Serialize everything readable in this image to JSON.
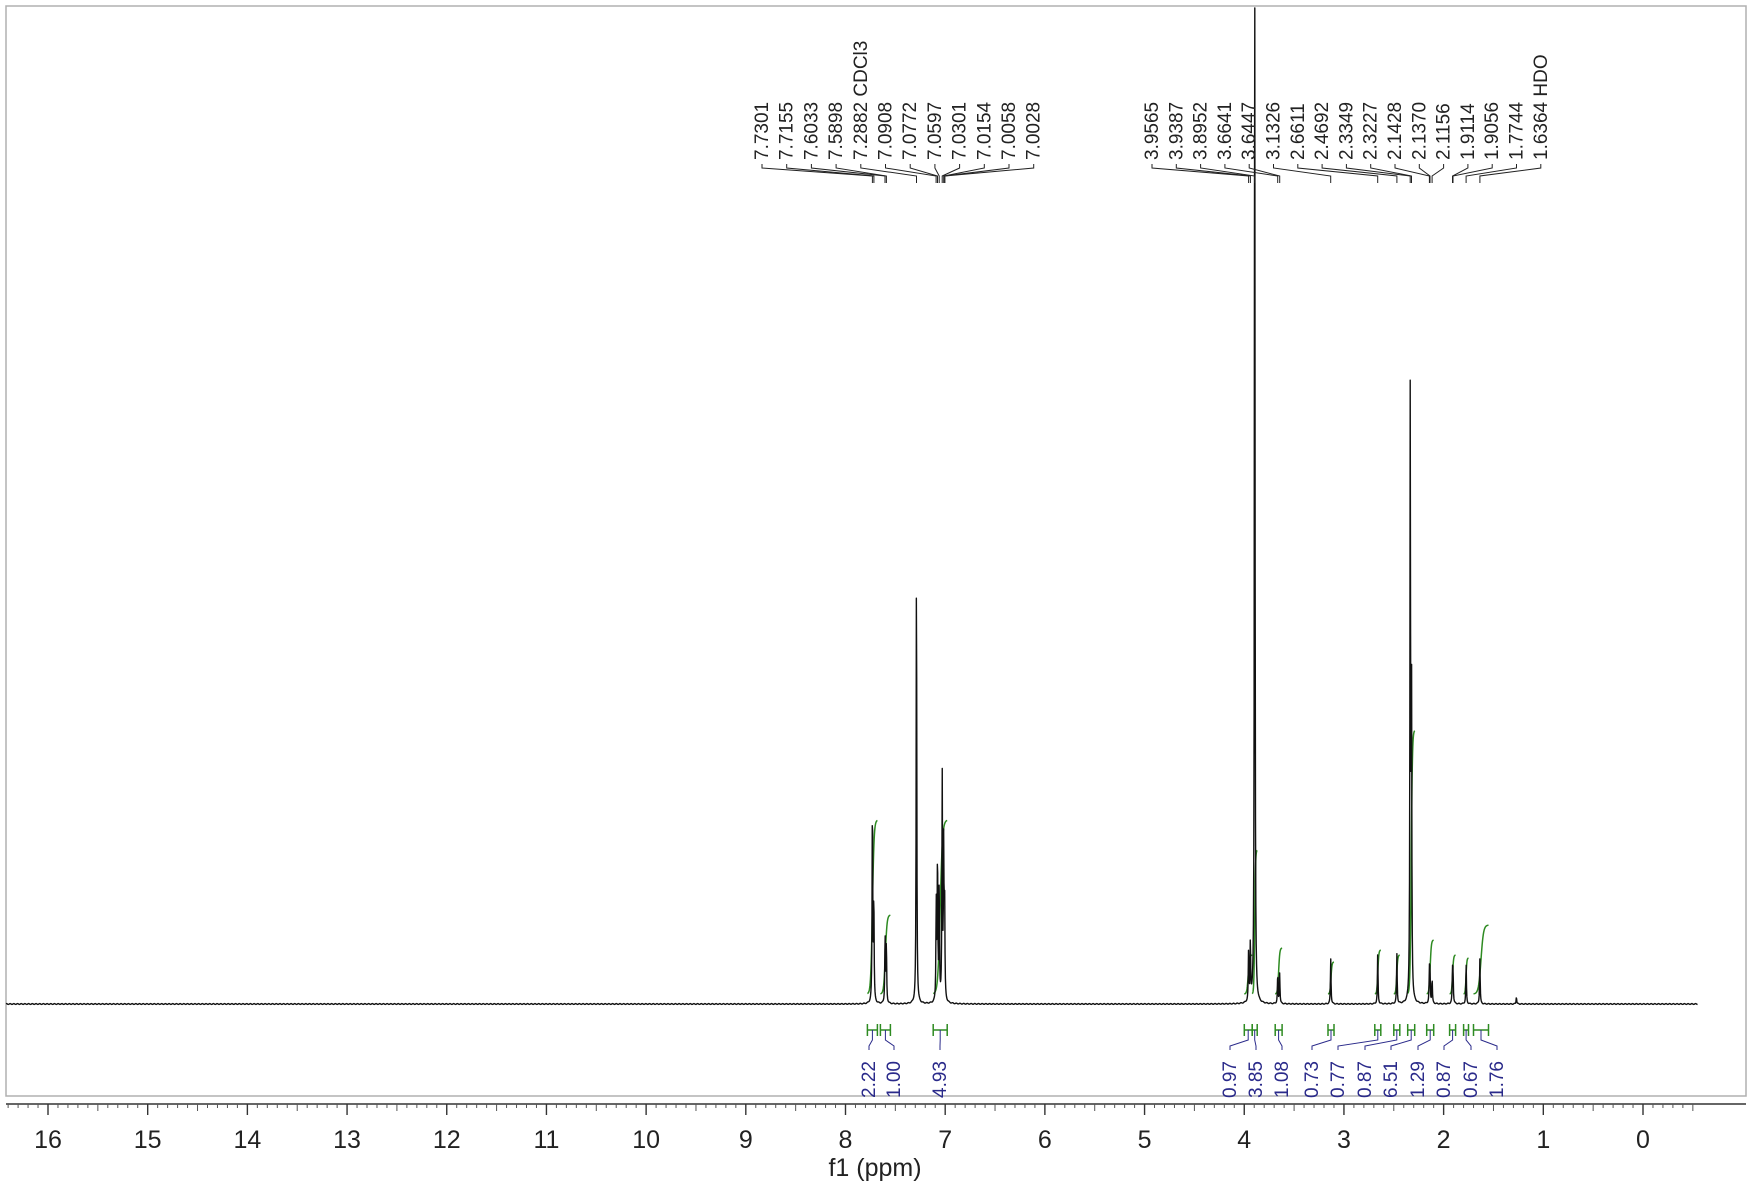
{
  "chart_data": {
    "type": "line",
    "xlabel": "f1 (ppm)",
    "ylabel": "",
    "xlim": [
      16.4,
      -0.5
    ],
    "x_reversed": true,
    "grid": false,
    "x_ticks": [
      16,
      15,
      14,
      13,
      12,
      11,
      10,
      9,
      8,
      7,
      6,
      5,
      4,
      3,
      2,
      1,
      0
    ],
    "tick_labels": [
      "16",
      "15",
      "14",
      "13",
      "12",
      "11",
      "10",
      "9",
      "8",
      "7",
      "6",
      "5",
      "4",
      "3",
      "2",
      "1",
      "0"
    ],
    "peak_groups": [
      {
        "labels": [
          "7.7301",
          "7.7155",
          "7.6033",
          "7.5898",
          "7.2882 CDCl3",
          "7.0908",
          "7.0772",
          "7.0597",
          "7.0301",
          "7.0154",
          "7.0058",
          "7.0028"
        ],
        "shifts": [
          7.7301,
          7.7155,
          7.6033,
          7.5898,
          7.2882,
          7.0908,
          7.0772,
          7.0597,
          7.0301,
          7.0154,
          7.0058,
          7.0028
        ]
      },
      {
        "labels": [
          "3.9565",
          "3.9387",
          "3.8952",
          "3.6641",
          "3.6447",
          "3.1326",
          "2.6611",
          "2.4692",
          "2.3349",
          "2.3227",
          "2.1428",
          "2.1370",
          "2.1156",
          "1.9114",
          "1.9056",
          "1.7744",
          "1.6364 HDO"
        ],
        "shifts": [
          3.9565,
          3.9387,
          3.8952,
          3.6641,
          3.6447,
          3.1326,
          2.6611,
          2.4692,
          2.3349,
          2.3227,
          2.1428,
          2.137,
          2.1156,
          1.9114,
          1.9056,
          1.7744,
          1.6364
        ]
      }
    ],
    "peaks": [
      {
        "x": 7.73,
        "h": 0.42
      },
      {
        "x": 7.716,
        "h": 0.21
      },
      {
        "x": 7.603,
        "h": 0.14
      },
      {
        "x": 7.59,
        "h": 0.12
      },
      {
        "x": 7.288,
        "h": 0.91
      },
      {
        "x": 7.09,
        "h": 0.2
      },
      {
        "x": 7.077,
        "h": 0.3
      },
      {
        "x": 7.06,
        "h": 0.23
      },
      {
        "x": 7.03,
        "h": 0.45
      },
      {
        "x": 7.015,
        "h": 0.3
      },
      {
        "x": 7.006,
        "h": 0.2
      },
      {
        "x": 3.9565,
        "h": 0.1
      },
      {
        "x": 3.9387,
        "h": 0.12
      },
      {
        "x": 3.8952,
        "h": 2.3
      },
      {
        "x": 3.6641,
        "h": 0.06
      },
      {
        "x": 3.6447,
        "h": 0.06
      },
      {
        "x": 3.1326,
        "h": 0.09
      },
      {
        "x": 2.6611,
        "h": 0.1
      },
      {
        "x": 2.4692,
        "h": 0.1
      },
      {
        "x": 2.3349,
        "h": 1.2
      },
      {
        "x": 2.3227,
        "h": 0.7
      },
      {
        "x": 2.1428,
        "h": 0.06
      },
      {
        "x": 2.137,
        "h": 0.06
      },
      {
        "x": 2.1156,
        "h": 0.05
      },
      {
        "x": 1.9114,
        "h": 0.06
      },
      {
        "x": 1.9056,
        "h": 0.06
      },
      {
        "x": 1.7744,
        "h": 0.08
      },
      {
        "x": 1.6364,
        "h": 0.09
      },
      {
        "x": 1.27,
        "h": 0.015
      }
    ],
    "integrals": [
      {
        "from": 7.78,
        "to": 7.68,
        "value": "2.22"
      },
      {
        "from": 7.65,
        "to": 7.55,
        "value": "1.00"
      },
      {
        "from": 7.12,
        "to": 6.98,
        "value": "4.93"
      },
      {
        "from": 4.0,
        "to": 3.92,
        "value": "0.97"
      },
      {
        "from": 3.92,
        "to": 3.87,
        "value": "3.85"
      },
      {
        "from": 3.69,
        "to": 3.62,
        "value": "1.08"
      },
      {
        "from": 3.16,
        "to": 3.1,
        "value": "0.73"
      },
      {
        "from": 2.69,
        "to": 2.63,
        "value": "0.77"
      },
      {
        "from": 2.5,
        "to": 2.44,
        "value": "0.87"
      },
      {
        "from": 2.36,
        "to": 2.29,
        "value": "6.51"
      },
      {
        "from": 2.17,
        "to": 2.1,
        "value": "1.29"
      },
      {
        "from": 1.94,
        "to": 1.88,
        "value": "0.87"
      },
      {
        "from": 1.8,
        "to": 1.75,
        "value": "0.67"
      },
      {
        "from": 1.7,
        "to": 1.55,
        "value": "1.76"
      }
    ],
    "colors": {
      "spectrum": "#111111",
      "integral_curve": "#2e8b22",
      "integral_bracket": "#2e8b22",
      "integral_label": "#2a2a8a",
      "frame": "#b0b0b0"
    }
  }
}
